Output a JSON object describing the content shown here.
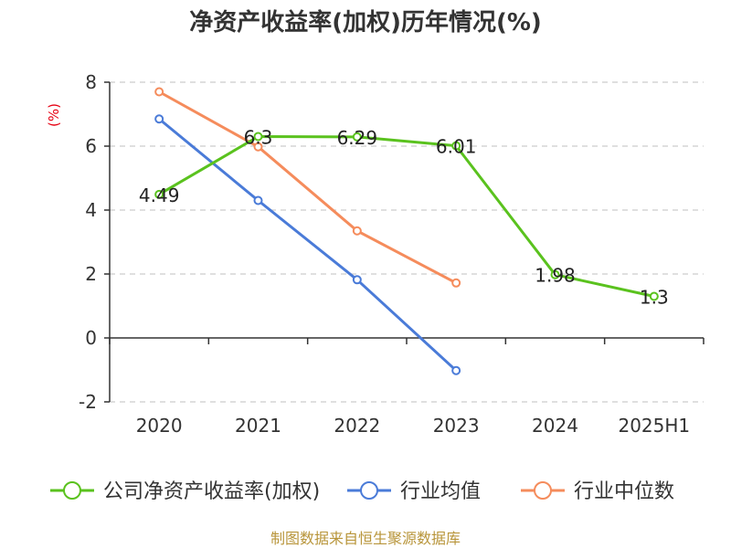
{
  "chart_data": {
    "type": "line",
    "title": "净资产收益率(加权)历年情况(%)",
    "ylabel": "(%)",
    "categories": [
      "2020",
      "2021",
      "2022",
      "2023",
      "2024",
      "2025H1"
    ],
    "ylim": [
      -2,
      8
    ],
    "yticks": [
      -2,
      0,
      2,
      4,
      6,
      8
    ],
    "grid": true,
    "legend_position": "bottom",
    "series": [
      {
        "name": "公司净资产收益率(加权)",
        "color": "#5ac21e",
        "values": [
          4.49,
          6.3,
          6.29,
          6.01,
          1.98,
          1.3
        ],
        "labels": [
          "4.49",
          "6.3",
          "6.29",
          "6.01",
          "1.98",
          "1.3"
        ]
      },
      {
        "name": "行业均值",
        "color": "#4a7bd8",
        "values": [
          6.85,
          4.3,
          1.82,
          -1.02,
          null,
          null
        ]
      },
      {
        "name": "行业中位数",
        "color": "#f58c5c",
        "values": [
          7.7,
          5.98,
          3.35,
          1.72,
          null,
          null
        ]
      }
    ],
    "source": "制图数据来自恒生聚源数据库"
  }
}
